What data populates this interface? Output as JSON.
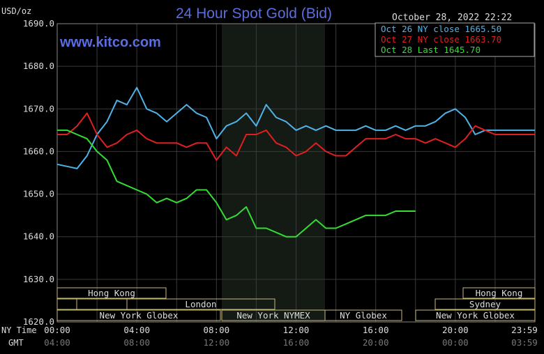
{
  "chart_data": {
    "type": "line",
    "title": "24 Hour Spot Gold (Bid)",
    "ylabel": "USD/oz",
    "timestamp": "October 28, 2022 22:22",
    "watermark": "www.kitco.com",
    "ylim": [
      1620,
      1690
    ],
    "y_ticks": [
      "1690.0",
      "1680.0",
      "1670.0",
      "1660.0",
      "1650.0",
      "1640.0",
      "1630.0",
      "1620.0"
    ],
    "x_axis_ny_label": "NY Time",
    "x_axis_gmt_label": "GMT",
    "x_ticks_ny": [
      "00:00",
      "04:00",
      "08:00",
      "12:00",
      "16:00",
      "20:00",
      "23:59"
    ],
    "x_ticks_gmt": [
      "04:00",
      "08:00",
      "12:00",
      "16:00",
      "20:00",
      "00:00",
      "03:59"
    ],
    "legend": [
      {
        "label": "Oct 26 NY close 1665.50",
        "color": "#4fb3e8"
      },
      {
        "label": "Oct 27 NY close 1663.70",
        "color": "#e02020"
      },
      {
        "label": "Oct 28 Last 1645.70",
        "color": "#33dd33"
      }
    ],
    "series": [
      {
        "name": "Oct 26",
        "color": "#4fb3e8",
        "x": [
          0,
          0.5,
          1,
          1.5,
          2,
          2.5,
          3,
          3.5,
          4,
          4.5,
          5,
          5.5,
          6,
          6.5,
          7,
          7.5,
          8,
          8.5,
          9,
          9.5,
          10,
          10.5,
          11,
          11.5,
          12,
          12.5,
          13,
          13.5,
          14,
          14.5,
          15,
          15.5,
          16,
          16.5,
          17,
          17.5,
          18,
          18.5,
          19,
          19.5,
          20,
          20.5,
          21,
          21.5,
          22,
          22.5,
          23,
          23.5,
          24
        ],
        "values": [
          1657,
          1656.5,
          1656,
          1659,
          1664,
          1667,
          1672,
          1671,
          1675,
          1670,
          1669,
          1667,
          1669,
          1671,
          1669,
          1668,
          1663,
          1666,
          1667,
          1669,
          1666,
          1671,
          1668,
          1667,
          1665,
          1666,
          1665,
          1666,
          1665,
          1665,
          1665,
          1666,
          1665,
          1665,
          1666,
          1665,
          1666,
          1666,
          1667,
          1669,
          1670,
          1668,
          1664,
          1665,
          1665,
          1665,
          1665,
          1665,
          1665
        ]
      },
      {
        "name": "Oct 27",
        "color": "#e02020",
        "x": [
          0,
          0.5,
          1,
          1.5,
          2,
          2.5,
          3,
          3.5,
          4,
          4.5,
          5,
          5.5,
          6,
          6.5,
          7,
          7.5,
          8,
          8.5,
          9,
          9.5,
          10,
          10.5,
          11,
          11.5,
          12,
          12.5,
          13,
          13.5,
          14,
          14.5,
          15,
          15.5,
          16,
          16.5,
          17,
          17.5,
          18,
          18.5,
          19,
          19.5,
          20,
          20.5,
          21,
          21.5,
          22,
          22.5,
          23,
          23.5,
          24
        ],
        "values": [
          1664,
          1664,
          1666,
          1669,
          1664,
          1661,
          1662,
          1664,
          1665,
          1663,
          1662,
          1662,
          1662,
          1661,
          1662,
          1662,
          1658,
          1661,
          1659,
          1664,
          1664,
          1665,
          1662,
          1661,
          1659,
          1660,
          1662,
          1660,
          1659,
          1659,
          1661,
          1663,
          1663,
          1663,
          1664,
          1663,
          1663,
          1662,
          1663,
          1662,
          1661,
          1663,
          1666,
          1665,
          1664,
          1664,
          1664,
          1664,
          1664
        ]
      },
      {
        "name": "Oct 28",
        "color": "#33dd33",
        "x": [
          0,
          0.5,
          1,
          1.5,
          2,
          2.5,
          3,
          3.5,
          4,
          4.5,
          5,
          5.5,
          6,
          6.5,
          7,
          7.5,
          8,
          8.5,
          9,
          9.5,
          10,
          10.5,
          11,
          11.5,
          12,
          12.5,
          13,
          13.5,
          14,
          14.5,
          15,
          15.5,
          16,
          16.5,
          17,
          17.5,
          18
        ],
        "values": [
          1665,
          1665,
          1664,
          1663,
          1660,
          1658,
          1653,
          1652,
          1651,
          1650,
          1648,
          1649,
          1648,
          1649,
          1651,
          1651,
          1648,
          1644,
          1645,
          1647,
          1642,
          1642,
          1641,
          1640,
          1640,
          1642,
          1644,
          1642,
          1642,
          1643,
          1644,
          1645,
          1645,
          1645,
          1646,
          1646,
          1646
        ]
      }
    ],
    "sessions_row1": [
      "Hong Kong",
      "Hong Kong"
    ],
    "sessions_row2": [
      "London",
      "Sydney"
    ],
    "sessions_row3": [
      "New York Globex",
      "New York NYMEX",
      "NY Globex",
      "New York Globex"
    ]
  }
}
